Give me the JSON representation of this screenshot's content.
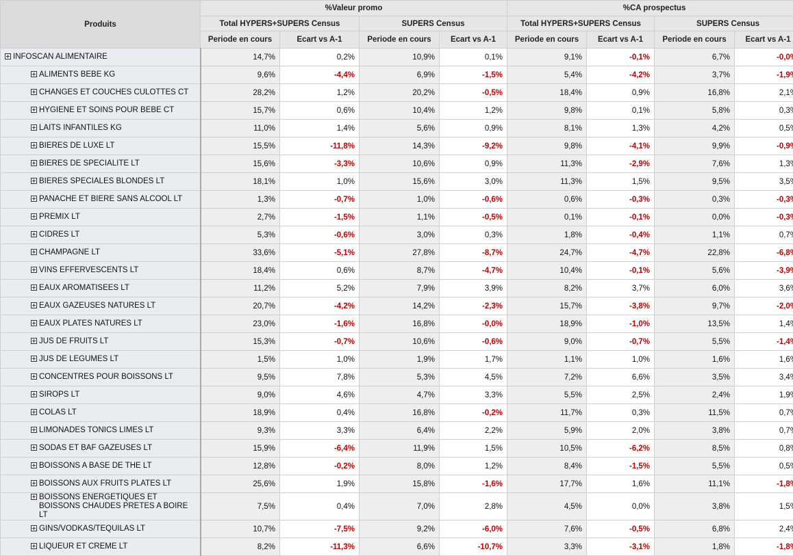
{
  "header": {
    "products": "Produits",
    "groups": [
      "%Valeur promo",
      "%CA prospectus"
    ],
    "subgroups": [
      "Total HYPERS+SUPERS Census",
      "SUPERS Census",
      "Total HYPERS+SUPERS Census",
      "SUPERS Census"
    ],
    "metrics": [
      "Periode en cours",
      "Ecart vs A-1",
      "Periode en cours",
      "Ecart vs A-1",
      "Periode en cours",
      "Ecart vs A-1",
      "Periode en cours",
      "Ecart vs A-1"
    ]
  },
  "rows": [
    {
      "name": "INFOSCAN ALIMENTAIRE",
      "level": 0,
      "values": [
        "14,7%",
        "0,2%",
        "10,9%",
        "0,1%",
        "9,1%",
        "-0,1%",
        "6,7%",
        "-0,0%"
      ]
    },
    {
      "name": "ALIMENTS BEBE KG",
      "level": 1,
      "values": [
        "9,6%",
        "-4,4%",
        "6,9%",
        "-1,5%",
        "5,4%",
        "-4,2%",
        "3,7%",
        "-1,9%"
      ]
    },
    {
      "name": "CHANGES ET COUCHES CULOTTES CT",
      "level": 1,
      "values": [
        "28,2%",
        "1,2%",
        "20,2%",
        "-0,5%",
        "18,4%",
        "0,9%",
        "16,8%",
        "2,1%"
      ]
    },
    {
      "name": "HYGIENE ET SOINS POUR BEBE CT",
      "level": 1,
      "values": [
        "15,7%",
        "0,6%",
        "10,4%",
        "1,2%",
        "9,8%",
        "0,1%",
        "5,8%",
        "0,3%"
      ]
    },
    {
      "name": "LAITS INFANTILES KG",
      "level": 1,
      "values": [
        "11,0%",
        "1,4%",
        "5,6%",
        "0,9%",
        "8,1%",
        "1,3%",
        "4,2%",
        "0,5%"
      ]
    },
    {
      "name": "BIERES DE LUXE LT",
      "level": 1,
      "values": [
        "15,5%",
        "-11,8%",
        "14,3%",
        "-9,2%",
        "9,8%",
        "-4,1%",
        "9,9%",
        "-0,9%"
      ]
    },
    {
      "name": "BIERES DE SPECIALITE LT",
      "level": 1,
      "values": [
        "15,6%",
        "-3,3%",
        "10,6%",
        "0,9%",
        "11,3%",
        "-2,9%",
        "7,6%",
        "1,3%"
      ]
    },
    {
      "name": "BIERES SPECIALES BLONDES LT",
      "level": 1,
      "values": [
        "18,1%",
        "1,0%",
        "15,6%",
        "3,0%",
        "11,3%",
        "1,5%",
        "9,5%",
        "3,5%"
      ]
    },
    {
      "name": "PANACHE ET BIERE SANS ALCOOL LT",
      "level": 1,
      "values": [
        "1,3%",
        "-0,7%",
        "1,0%",
        "-0,6%",
        "0,6%",
        "-0,3%",
        "0,3%",
        "-0,3%"
      ]
    },
    {
      "name": "PREMIX LT",
      "level": 1,
      "values": [
        "2,7%",
        "-1,5%",
        "1,1%",
        "-0,5%",
        "0,1%",
        "-0,1%",
        "0,0%",
        "-0,3%"
      ]
    },
    {
      "name": "CIDRES LT",
      "level": 1,
      "values": [
        "5,3%",
        "-0,6%",
        "3,0%",
        "0,3%",
        "1,8%",
        "-0,4%",
        "1,1%",
        "0,7%"
      ]
    },
    {
      "name": "CHAMPAGNE LT",
      "level": 1,
      "values": [
        "33,6%",
        "-5,1%",
        "27,8%",
        "-8,7%",
        "24,7%",
        "-4,7%",
        "22,8%",
        "-6,8%"
      ]
    },
    {
      "name": "VINS EFFERVESCENTS LT",
      "level": 1,
      "values": [
        "18,4%",
        "0,6%",
        "8,7%",
        "-4,7%",
        "10,4%",
        "-0,1%",
        "5,6%",
        "-3,9%"
      ]
    },
    {
      "name": "EAUX AROMATISEES LT",
      "level": 1,
      "values": [
        "11,2%",
        "5,2%",
        "7,9%",
        "3,9%",
        "8,2%",
        "3,7%",
        "6,0%",
        "3,6%"
      ]
    },
    {
      "name": "EAUX GAZEUSES NATURES LT",
      "level": 1,
      "values": [
        "20,7%",
        "-4,2%",
        "14,2%",
        "-2,3%",
        "15,7%",
        "-3,8%",
        "9,7%",
        "-2,0%"
      ]
    },
    {
      "name": "EAUX PLATES NATURES LT",
      "level": 1,
      "values": [
        "23,0%",
        "-1,6%",
        "16,8%",
        "-0,0%",
        "18,9%",
        "-1,0%",
        "13,5%",
        "1,4%"
      ]
    },
    {
      "name": "JUS DE FRUITS LT",
      "level": 1,
      "values": [
        "15,3%",
        "-0,7%",
        "10,6%",
        "-0,6%",
        "9,0%",
        "-0,7%",
        "5,5%",
        "-1,4%"
      ]
    },
    {
      "name": "JUS DE LEGUMES LT",
      "level": 1,
      "values": [
        "1,5%",
        "1,0%",
        "1,9%",
        "1,7%",
        "1,1%",
        "1,0%",
        "1,6%",
        "1,6%"
      ]
    },
    {
      "name": "CONCENTRES POUR BOISSONS LT",
      "level": 1,
      "values": [
        "9,5%",
        "7,8%",
        "5,3%",
        "4,5%",
        "7,2%",
        "6,6%",
        "3,5%",
        "3,4%"
      ]
    },
    {
      "name": "SIROPS LT",
      "level": 1,
      "values": [
        "9,0%",
        "4,6%",
        "4,7%",
        "3,3%",
        "5,5%",
        "2,5%",
        "2,4%",
        "1,9%"
      ]
    },
    {
      "name": "COLAS LT",
      "level": 1,
      "values": [
        "18,9%",
        "0,4%",
        "16,8%",
        "-0,2%",
        "11,7%",
        "0,3%",
        "11,5%",
        "0,7%"
      ]
    },
    {
      "name": "LIMONADES TONICS LIMES LT",
      "level": 1,
      "values": [
        "9,3%",
        "3,3%",
        "6,4%",
        "2,2%",
        "5,9%",
        "2,0%",
        "3,8%",
        "0,7%"
      ]
    },
    {
      "name": "SODAS ET BAF GAZEUSES LT",
      "level": 1,
      "values": [
        "15,9%",
        "-6,4%",
        "11,9%",
        "1,5%",
        "10,5%",
        "-6,2%",
        "8,5%",
        "0,8%"
      ]
    },
    {
      "name": "BOISSONS A BASE DE THE LT",
      "level": 1,
      "values": [
        "12,8%",
        "-0,2%",
        "8,0%",
        "1,2%",
        "8,4%",
        "-1,5%",
        "5,5%",
        "0,5%"
      ]
    },
    {
      "name": "BOISSONS AUX FRUITS PLATES LT",
      "level": 1,
      "values": [
        "25,6%",
        "1,9%",
        "15,8%",
        "-1,6%",
        "17,7%",
        "1,6%",
        "11,1%",
        "-1,8%"
      ]
    },
    {
      "name": "BOISSONS ENERGETIQUES ET BOISSONS CHAUDES PRETES A BOIRE LT",
      "level": 1,
      "values": [
        "7,5%",
        "0,4%",
        "7,0%",
        "2,8%",
        "4,5%",
        "0,0%",
        "3,8%",
        "1,5%"
      ]
    },
    {
      "name": "GINS/VODKAS/TEQUILAS LT",
      "level": 1,
      "values": [
        "10,7%",
        "-7,5%",
        "9,2%",
        "-6,0%",
        "7,6%",
        "-0,5%",
        "6,8%",
        "2,4%"
      ]
    },
    {
      "name": "LIQUEUR ET CREME LT",
      "level": 1,
      "values": [
        "8,2%",
        "-11,3%",
        "6,6%",
        "-10,7%",
        "3,3%",
        "-3,1%",
        "1,8%",
        "-1,8%"
      ]
    }
  ]
}
